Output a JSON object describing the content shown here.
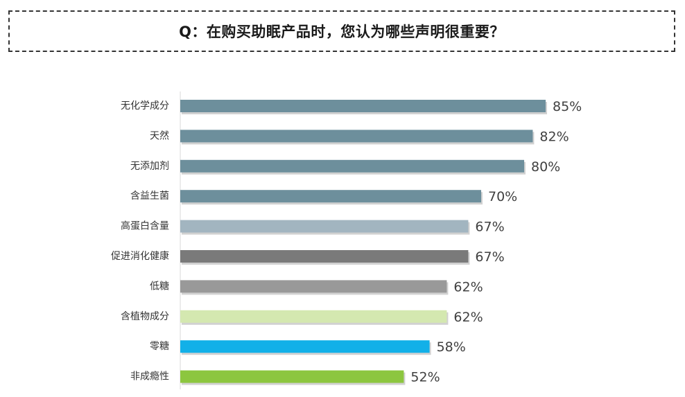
{
  "question": {
    "title": "Q：在购买助眠产品时，您认为哪些声明很重要？"
  },
  "chart_data": {
    "type": "bar",
    "orientation": "horizontal",
    "categories": [
      "无化学成分",
      "天然",
      "无添加剂",
      "含益生菌",
      "高蛋白含量",
      "促进消化健康",
      "低糖",
      "含植物成分",
      "零糖",
      "非成瘾性"
    ],
    "values": [
      85,
      82,
      80,
      70,
      67,
      67,
      62,
      62,
      58,
      52
    ],
    "value_labels": [
      "85%",
      "82%",
      "80%",
      "70%",
      "67%",
      "67%",
      "62%",
      "62%",
      "58%",
      "52%"
    ],
    "colors": [
      "#6d8f9c",
      "#6d8f9c",
      "#6d8f9c",
      "#6d8f9c",
      "#a2b5c0",
      "#7a7a7a",
      "#999999",
      "#d4e8b0",
      "#12b0e8",
      "#8cc63f"
    ],
    "xlim": [
      0,
      100
    ],
    "grid": false,
    "legend": "none"
  }
}
